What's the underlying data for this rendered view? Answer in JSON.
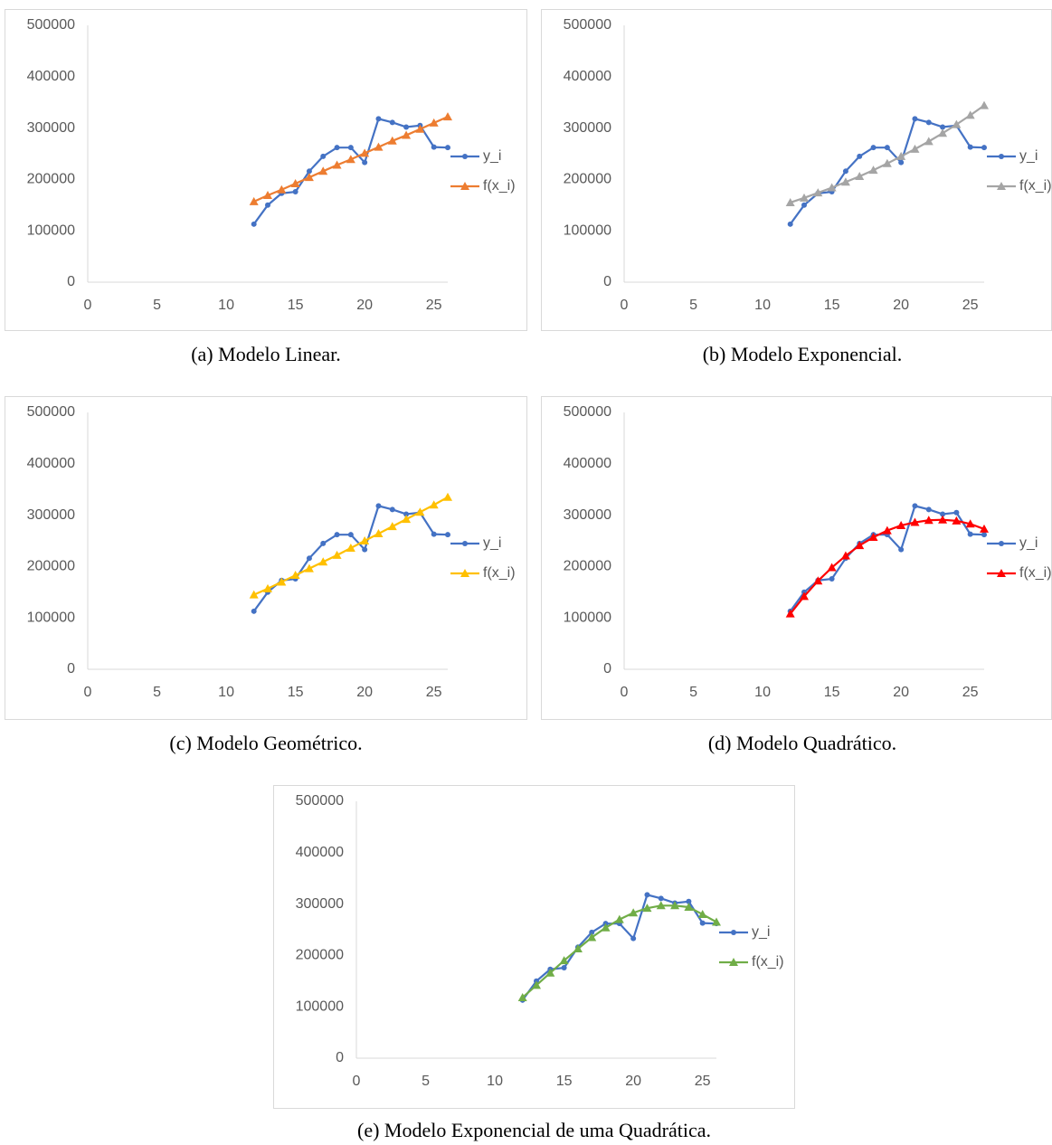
{
  "chart_data": [
    {
      "type": "line",
      "caption": "(a) Modelo Linear.",
      "x": [
        12,
        13,
        14,
        15,
        16,
        17,
        18,
        19,
        20,
        21,
        22,
        23,
        24,
        25,
        26
      ],
      "series": [
        {
          "name": "y_i",
          "color": "#4472c4",
          "marker": "circle",
          "values": [
            113000,
            150000,
            173000,
            176000,
            216000,
            245000,
            262000,
            262000,
            233000,
            318000,
            311000,
            302000,
            305000,
            263000,
            262000
          ]
        },
        {
          "name": "f(x_i)",
          "color": "#ed7d31",
          "marker": "triangle",
          "values": [
            157000,
            169000,
            180000,
            192000,
            204000,
            216000,
            228000,
            239000,
            251000,
            263000,
            275000,
            286000,
            298000,
            310000,
            322000
          ]
        }
      ],
      "xlim": [
        0,
        26
      ],
      "ylim": [
        0,
        500000
      ],
      "xticks": [
        0,
        5,
        10,
        15,
        20,
        25
      ],
      "yticks": [
        0,
        100000,
        200000,
        300000,
        400000,
        500000
      ],
      "legend": "right"
    },
    {
      "type": "line",
      "caption": "(b) Modelo Exponencial.",
      "x": [
        12,
        13,
        14,
        15,
        16,
        17,
        18,
        19,
        20,
        21,
        22,
        23,
        24,
        25,
        26
      ],
      "series": [
        {
          "name": "y_i",
          "color": "#4472c4",
          "marker": "circle",
          "values": [
            113000,
            150000,
            173000,
            176000,
            216000,
            245000,
            262000,
            262000,
            233000,
            318000,
            311000,
            302000,
            305000,
            263000,
            262000
          ]
        },
        {
          "name": "f(x_i)",
          "color": "#a5a5a5",
          "marker": "triangle",
          "values": [
            155000,
            164000,
            174000,
            184000,
            195000,
            206000,
            218000,
            231000,
            245000,
            259000,
            274000,
            290000,
            307000,
            325000,
            344000
          ]
        }
      ],
      "xlim": [
        0,
        26
      ],
      "ylim": [
        0,
        500000
      ],
      "xticks": [
        0,
        5,
        10,
        15,
        20,
        25
      ],
      "yticks": [
        0,
        100000,
        200000,
        300000,
        400000,
        500000
      ],
      "legend": "right"
    },
    {
      "type": "line",
      "caption": "(c) Modelo Geométrico.",
      "x": [
        12,
        13,
        14,
        15,
        16,
        17,
        18,
        19,
        20,
        21,
        22,
        23,
        24,
        25,
        26
      ],
      "series": [
        {
          "name": "y_i",
          "color": "#4472c4",
          "marker": "circle",
          "values": [
            113000,
            150000,
            173000,
            176000,
            216000,
            245000,
            262000,
            262000,
            233000,
            318000,
            311000,
            302000,
            305000,
            263000,
            262000
          ]
        },
        {
          "name": "f(x_i)",
          "color": "#ffc000",
          "marker": "triangle",
          "values": [
            145000,
            157000,
            170000,
            183000,
            196000,
            209000,
            222000,
            236000,
            250000,
            264000,
            278000,
            292000,
            306000,
            320000,
            335000
          ]
        }
      ],
      "xlim": [
        0,
        26
      ],
      "ylim": [
        0,
        500000
      ],
      "xticks": [
        0,
        5,
        10,
        15,
        20,
        25
      ],
      "yticks": [
        0,
        100000,
        200000,
        300000,
        400000,
        500000
      ],
      "legend": "right"
    },
    {
      "type": "line",
      "caption": "(d) Modelo Quadrático.",
      "x": [
        12,
        13,
        14,
        15,
        16,
        17,
        18,
        19,
        20,
        21,
        22,
        23,
        24,
        25,
        26
      ],
      "series": [
        {
          "name": "y_i",
          "color": "#4472c4",
          "marker": "circle",
          "values": [
            113000,
            150000,
            173000,
            176000,
            216000,
            245000,
            262000,
            262000,
            233000,
            318000,
            311000,
            302000,
            305000,
            263000,
            262000
          ]
        },
        {
          "name": "f(x_i)",
          "color": "#ff0000",
          "marker": "triangle",
          "values": [
            108000,
            142000,
            172000,
            198000,
            221000,
            241000,
            257000,
            270000,
            280000,
            286000,
            290000,
            291000,
            289000,
            283000,
            273000
          ]
        }
      ],
      "xlim": [
        0,
        26
      ],
      "ylim": [
        0,
        500000
      ],
      "xticks": [
        0,
        5,
        10,
        15,
        20,
        25
      ],
      "yticks": [
        0,
        100000,
        200000,
        300000,
        400000,
        500000
      ],
      "legend": "right"
    },
    {
      "type": "line",
      "caption": "(e) Modelo Exponencial de uma Quadrática.",
      "x": [
        12,
        13,
        14,
        15,
        16,
        17,
        18,
        19,
        20,
        21,
        22,
        23,
        24,
        25,
        26
      ],
      "series": [
        {
          "name": "y_i",
          "color": "#4472c4",
          "marker": "circle",
          "values": [
            113000,
            150000,
            173000,
            176000,
            216000,
            245000,
            262000,
            262000,
            233000,
            318000,
            311000,
            302000,
            305000,
            263000,
            262000
          ]
        },
        {
          "name": "f(x_i)",
          "color": "#70ad47",
          "marker": "triangle",
          "values": [
            118000,
            142000,
            166000,
            190000,
            213000,
            235000,
            254000,
            270000,
            283000,
            292000,
            297000,
            297000,
            294000,
            280000,
            265000
          ]
        }
      ],
      "xlim": [
        0,
        26
      ],
      "ylim": [
        0,
        500000
      ],
      "xticks": [
        0,
        5,
        10,
        15,
        20,
        25
      ],
      "yticks": [
        0,
        100000,
        200000,
        300000,
        400000,
        500000
      ],
      "legend": "right"
    }
  ]
}
